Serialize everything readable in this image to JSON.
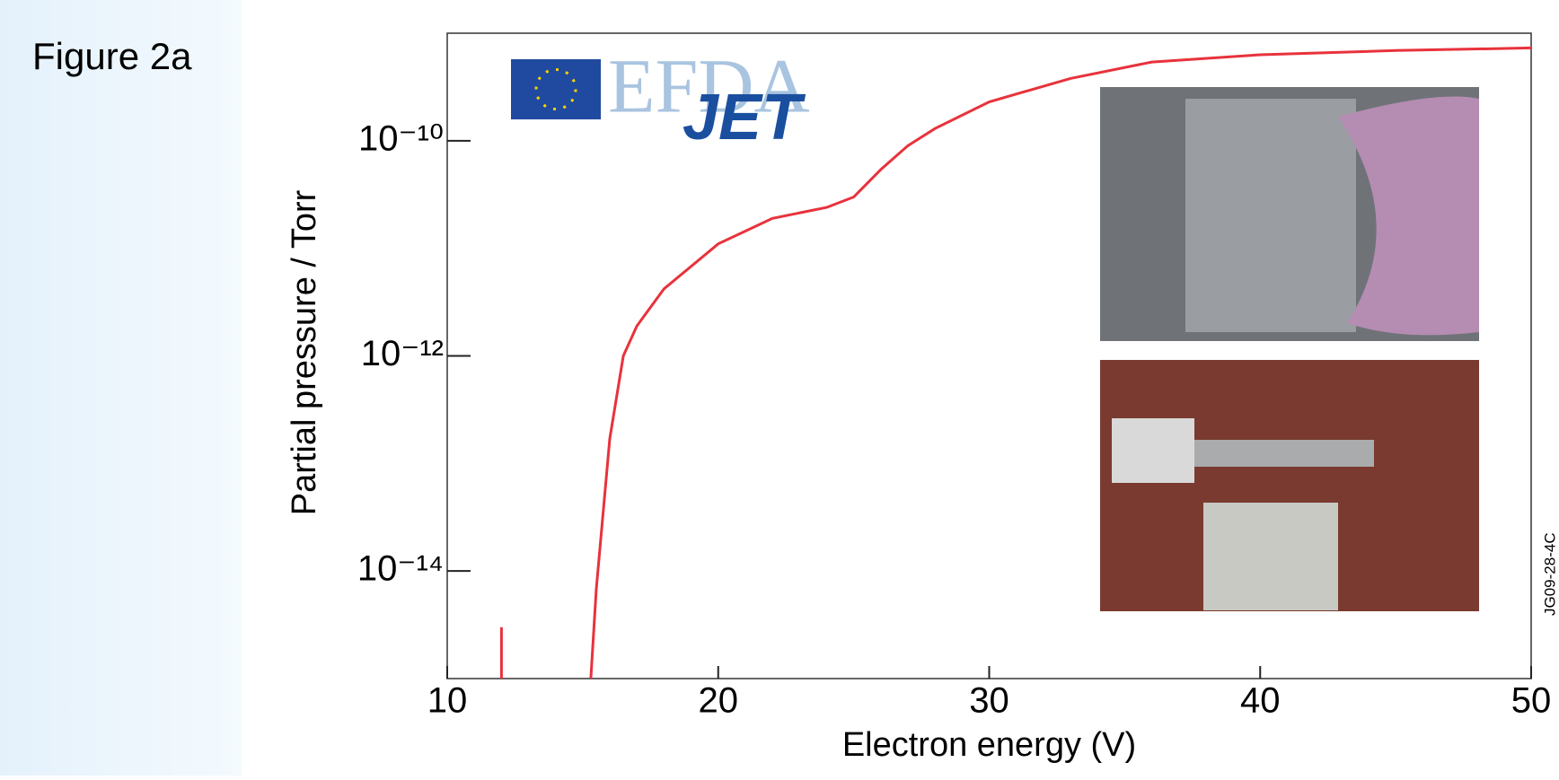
{
  "figure_label": "Figure 2a",
  "logo": {
    "efda": "EFDA",
    "jet": "JET"
  },
  "image_id": "JG09-28-4C",
  "chart_data": {
    "type": "line",
    "xlabel": "Electron energy (V)",
    "ylabel": "Partial pressure / Torr",
    "ylog": true,
    "xlim": [
      10,
      50
    ],
    "ylim": [
      1e-15,
      1e-09
    ],
    "xticks": [
      10,
      20,
      30,
      40,
      50
    ],
    "yticks": [
      {
        "value": 1e-14,
        "label": "10⁻¹⁴"
      },
      {
        "value": 1e-12,
        "label": "10⁻¹²"
      },
      {
        "value": 1e-10,
        "label": "10⁻¹⁰"
      }
    ],
    "series": [
      {
        "color": "#e8323c",
        "x": [
          12,
          12
        ],
        "values": [
          1e-15,
          3e-15
        ]
      },
      {
        "color": "#e8323c",
        "x": [
          15.3,
          15.5,
          16,
          16.5,
          17,
          18,
          20,
          22,
          24,
          25,
          26,
          27,
          28,
          30,
          33,
          36,
          40,
          45,
          50
        ],
        "values": [
          1e-15,
          6.8e-15,
          1.7e-13,
          1e-12,
          1.9e-12,
          4.2e-12,
          1.1e-11,
          1.9e-11,
          2.4e-11,
          3e-11,
          5.4e-11,
          9e-11,
          1.3e-10,
          2.3e-10,
          3.8e-10,
          5.4e-10,
          6.3e-10,
          6.9e-10,
          7.3e-10
        ]
      }
    ]
  }
}
